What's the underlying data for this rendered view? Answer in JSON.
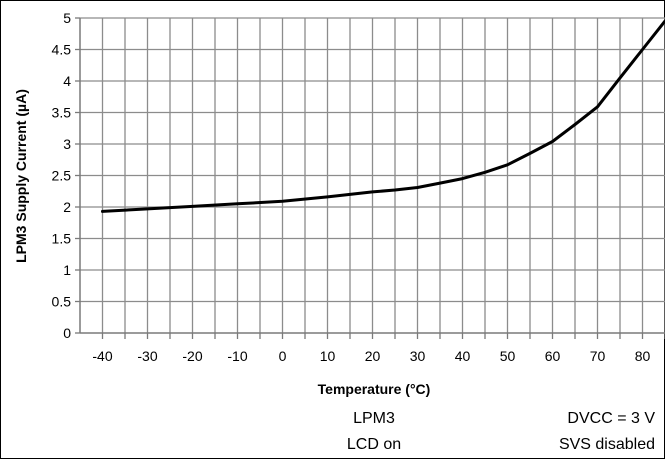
{
  "chart_data": {
    "type": "line",
    "title": "",
    "xlabel": "Temperature (°C)",
    "ylabel": "LPM3 Supply Current (µA)",
    "xlim": [
      -45,
      85
    ],
    "ylim": [
      0,
      5
    ],
    "x_ticks": [
      -40,
      -30,
      -20,
      -10,
      0,
      10,
      20,
      30,
      40,
      50,
      60,
      70,
      80
    ],
    "y_ticks": [
      0,
      0.5,
      1,
      1.5,
      2,
      2.5,
      3,
      3.5,
      4,
      4.5,
      5
    ],
    "grid": true,
    "series": [
      {
        "x": [
          -40,
          -30,
          -20,
          -10,
          0,
          10,
          20,
          25,
          30,
          35,
          40,
          45,
          50,
          55,
          60,
          65,
          70,
          75,
          80,
          85
        ],
        "y": [
          1.93,
          1.97,
          2.01,
          2.05,
          2.09,
          2.16,
          2.24,
          2.27,
          2.31,
          2.38,
          2.45,
          2.55,
          2.67,
          2.85,
          3.04,
          3.31,
          3.59,
          4.05,
          4.5,
          4.95
        ]
      }
    ],
    "color": "#000000",
    "annotations": {
      "left_line1": "LPM3",
      "left_line2": "LCD on",
      "right_line1": "DVCC = 3 V",
      "right_line2": "SVS disabled"
    }
  }
}
